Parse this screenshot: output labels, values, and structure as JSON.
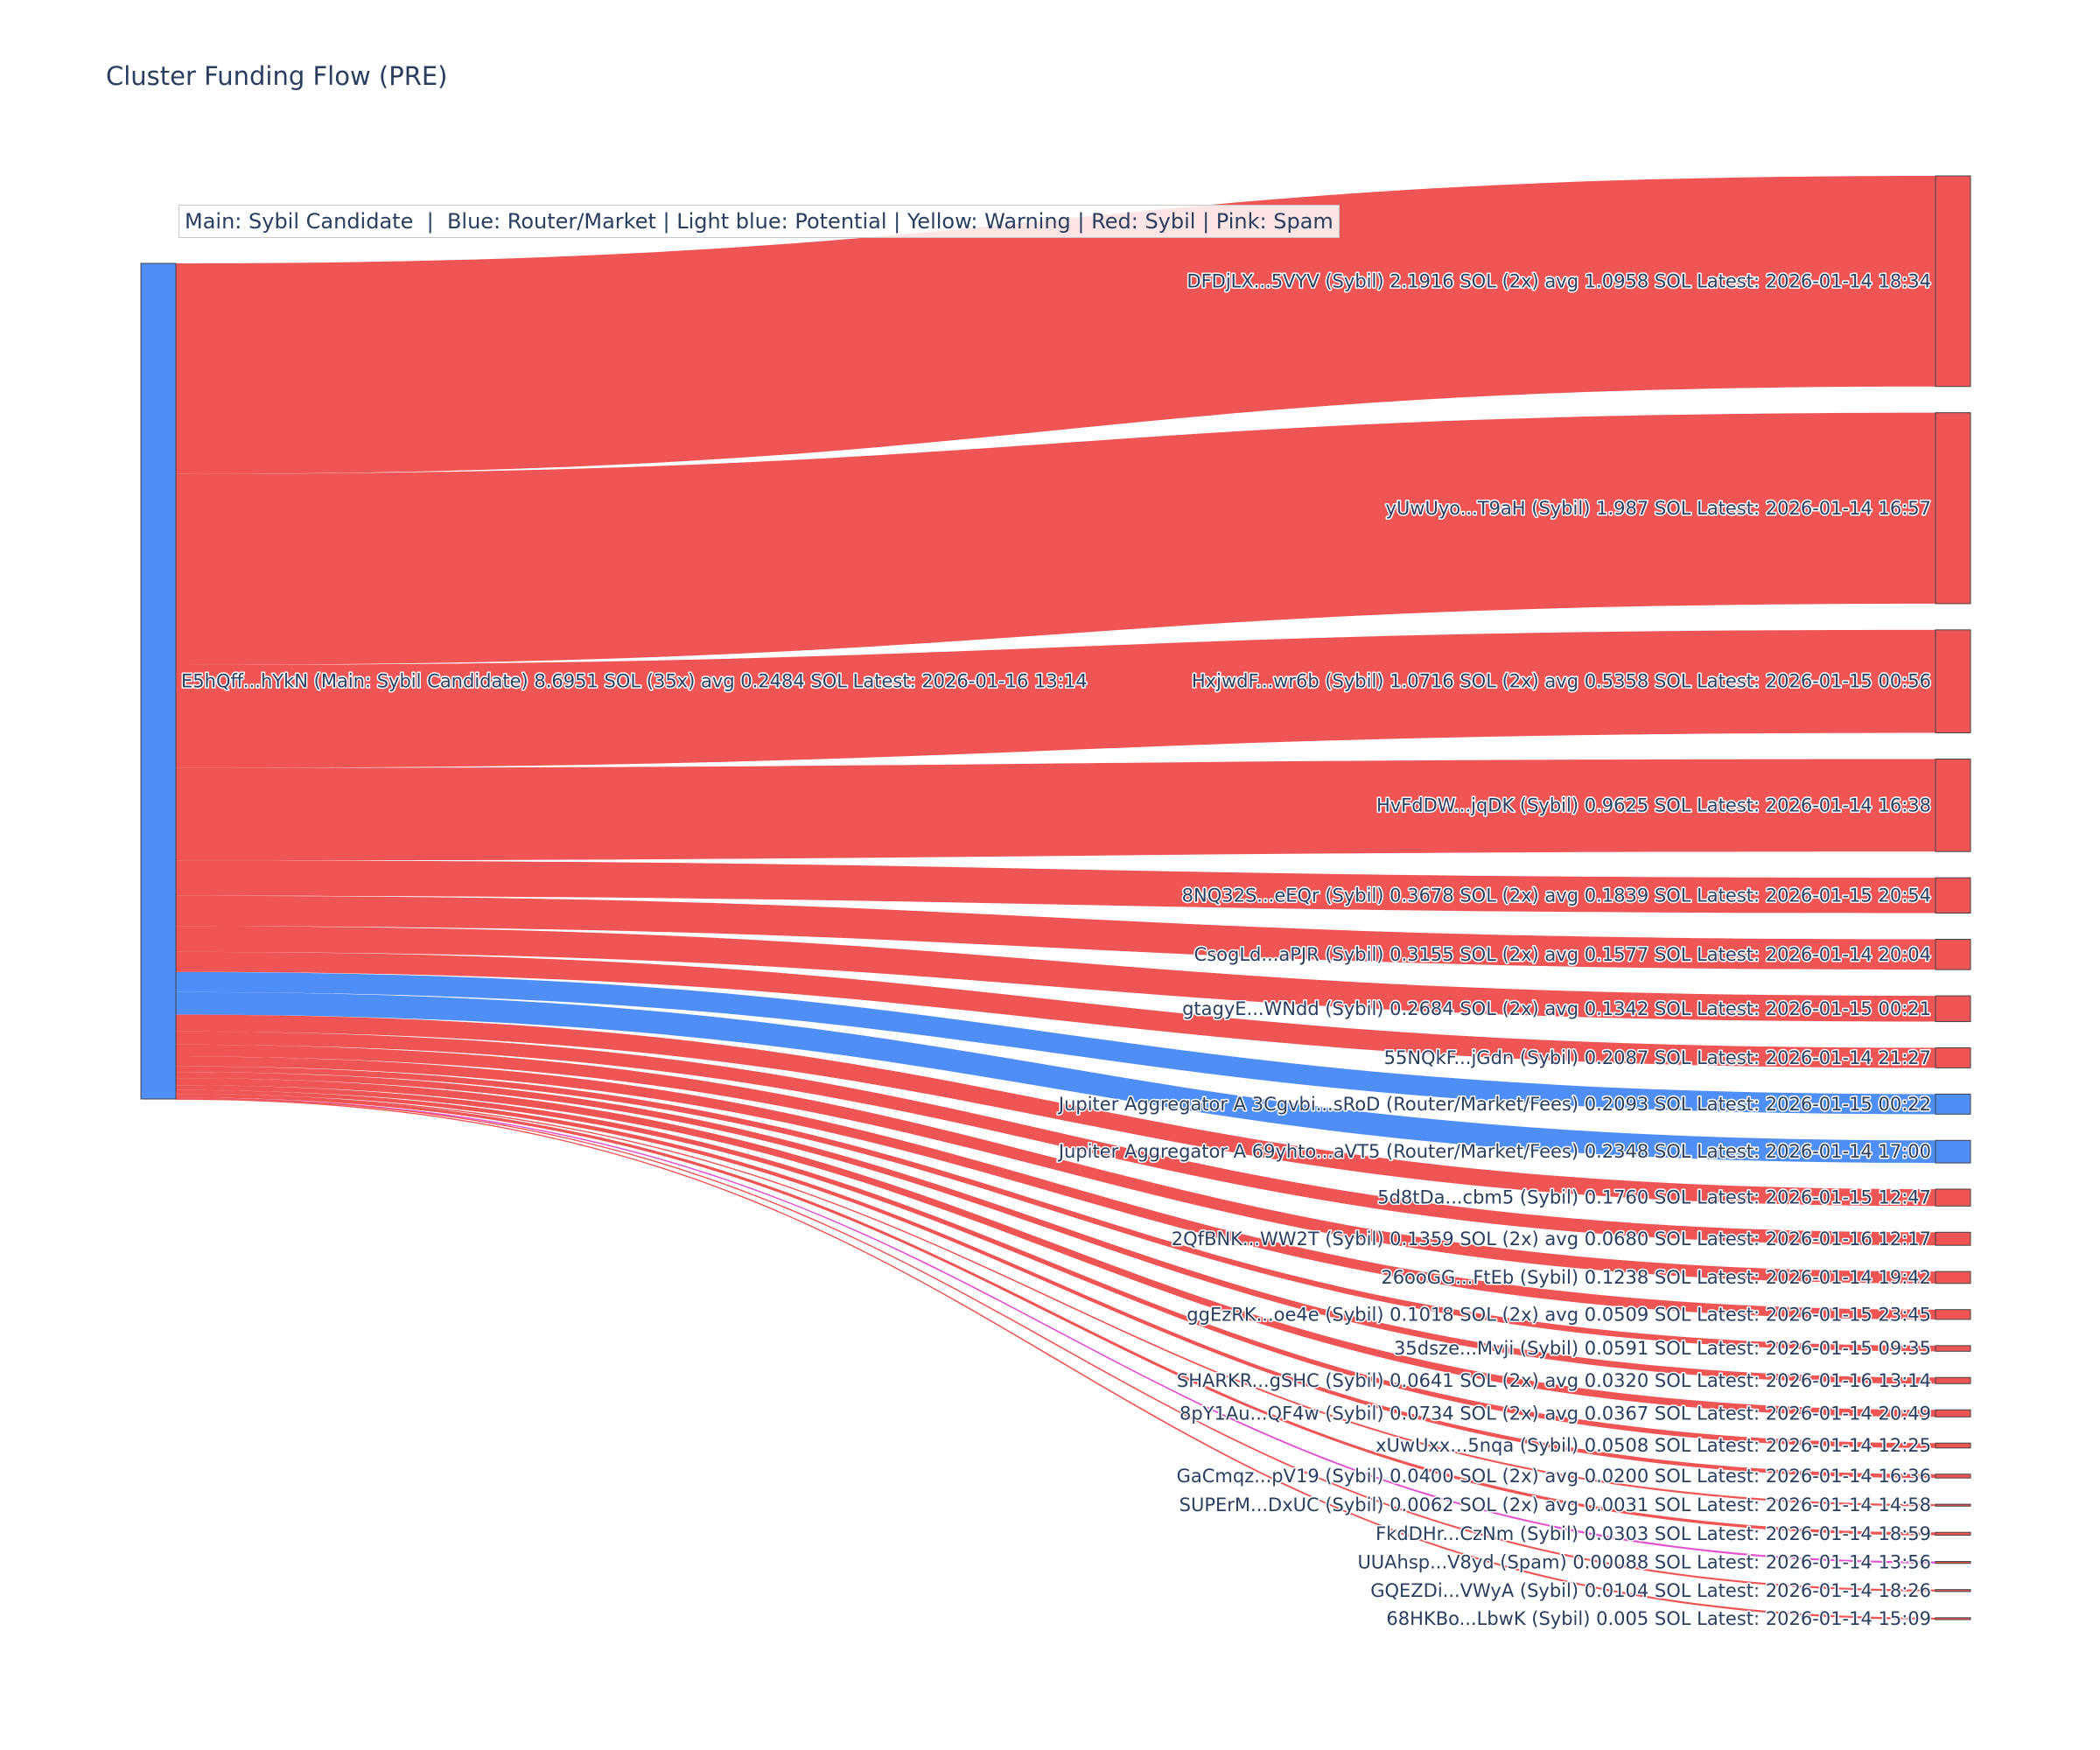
{
  "chart_data": {
    "type": "sankey",
    "title": "Cluster Funding Flow (PRE)",
    "legend_text": "Main: Sybil Candidate  |  Blue: Router/Market | Light blue: Potential | Yellow: Warning | Red: Sybil | Pink: Spam",
    "colors": {
      "main": "#4f8ef7",
      "router": "#4f8ef7",
      "sybil": "#ef5555",
      "spam": "#e24fd0",
      "node_border": "#444444"
    },
    "source": {
      "label": "E5hQff...hYkN (Main: Sybil Candidate) 8.6951 SOL (35x) avg 0.2484 SOL Latest: 2026-01-16 13:14",
      "category": "main",
      "value": 8.6951
    },
    "targets": [
      {
        "label": "DFDjLX...5VYV (Sybil) 2.1916 SOL (2x) avg 1.0958 SOL Latest: 2026-01-14 18:34",
        "value": 2.1916,
        "category": "sybil"
      },
      {
        "label": "yUwUyo...T9aH (Sybil) 1.987 SOL Latest: 2026-01-14 16:57",
        "value": 1.987,
        "category": "sybil"
      },
      {
        "label": "HxjwdF...wr6b (Sybil) 1.0716 SOL (2x) avg 0.5358 SOL Latest: 2026-01-15 00:56",
        "value": 1.0716,
        "category": "sybil"
      },
      {
        "label": "HvFdDW...jqDK (Sybil) 0.9625 SOL Latest: 2026-01-14 16:38",
        "value": 0.9625,
        "category": "sybil"
      },
      {
        "label": "8NQ32S...eEQr (Sybil) 0.3678 SOL (2x) avg 0.1839 SOL Latest: 2026-01-15 20:54",
        "value": 0.3678,
        "category": "sybil"
      },
      {
        "label": "CsogLd...aPJR (Sybil) 0.3155 SOL (2x) avg 0.1577 SOL Latest: 2026-01-14 20:04",
        "value": 0.3155,
        "category": "sybil"
      },
      {
        "label": "gtagyE...WNdd (Sybil) 0.2684 SOL (2x) avg 0.1342 SOL Latest: 2026-01-15 00:21",
        "value": 0.2684,
        "category": "sybil"
      },
      {
        "label": "55NQkF...jGdn (Sybil) 0.2087 SOL Latest: 2026-01-14 21:27",
        "value": 0.2087,
        "category": "sybil"
      },
      {
        "label": "Jupiter Aggregator A 3Cgvbi...sRoD (Router/Market/Fees) 0.2093 SOL Latest: 2026-01-15 00:22",
        "value": 0.2093,
        "category": "router"
      },
      {
        "label": "Jupiter Aggregator A 69yhto...aVT5 (Router/Market/Fees) 0.2348 SOL Latest: 2026-01-14 17:00",
        "value": 0.2348,
        "category": "router"
      },
      {
        "label": "5d8tDa...cbm5 (Sybil) 0.1760 SOL Latest: 2026-01-15 12:47",
        "value": 0.176,
        "category": "sybil"
      },
      {
        "label": "2QfBNK...WW2T (Sybil) 0.1359 SOL (2x) avg 0.0680 SOL Latest: 2026-01-16 12:17",
        "value": 0.1359,
        "category": "sybil"
      },
      {
        "label": "26ooGG...FtEb (Sybil) 0.1238 SOL Latest: 2026-01-14 19:42",
        "value": 0.1238,
        "category": "sybil"
      },
      {
        "label": "ggEzRK...oe4e (Sybil) 0.1018 SOL (2x) avg 0.0509 SOL Latest: 2026-01-15 23:45",
        "value": 0.1018,
        "category": "sybil"
      },
      {
        "label": "35dsze...Mvji (Sybil) 0.0591 SOL Latest: 2026-01-15 09:35",
        "value": 0.0591,
        "category": "sybil"
      },
      {
        "label": "SHARKR...gSHC (Sybil) 0.0641 SOL (2x) avg 0.0320 SOL Latest: 2026-01-16 13:14",
        "value": 0.0641,
        "category": "sybil"
      },
      {
        "label": "8pY1Au...QF4w (Sybil) 0.0734 SOL (2x) avg 0.0367 SOL Latest: 2026-01-14 20:49",
        "value": 0.0734,
        "category": "sybil"
      },
      {
        "label": "xUwUxx...5nqa (Sybil) 0.0508 SOL Latest: 2026-01-14 12:25",
        "value": 0.0508,
        "category": "sybil"
      },
      {
        "label": "GaCmqz...pV19 (Sybil) 0.0400 SOL (2x) avg 0.0200 SOL Latest: 2026-01-14 16:36",
        "value": 0.04,
        "category": "sybil"
      },
      {
        "label": "SUPErM...DxUC (Sybil) 0.0062 SOL (2x) avg 0.0031 SOL Latest: 2026-01-14 14:58",
        "value": 0.0062,
        "category": "sybil"
      },
      {
        "label": "FkdDHr...CzNm (Sybil) 0.0303 SOL Latest: 2026-01-14 18:59",
        "value": 0.0303,
        "category": "sybil"
      },
      {
        "label": "UUAhsp...V8yd (Spam) 0.00088 SOL Latest: 2026-01-14 13:56",
        "value": 0.00088,
        "category": "spam"
      },
      {
        "label": "GQEZDi...VWyA (Sybil) 0.0104 SOL Latest: 2026-01-14 18:26",
        "value": 0.0104,
        "category": "sybil"
      },
      {
        "label": "68HKBo...LbwK (Sybil) 0.005 SOL Latest: 2026-01-14 15:09",
        "value": 0.005,
        "category": "sybil"
      }
    ]
  }
}
